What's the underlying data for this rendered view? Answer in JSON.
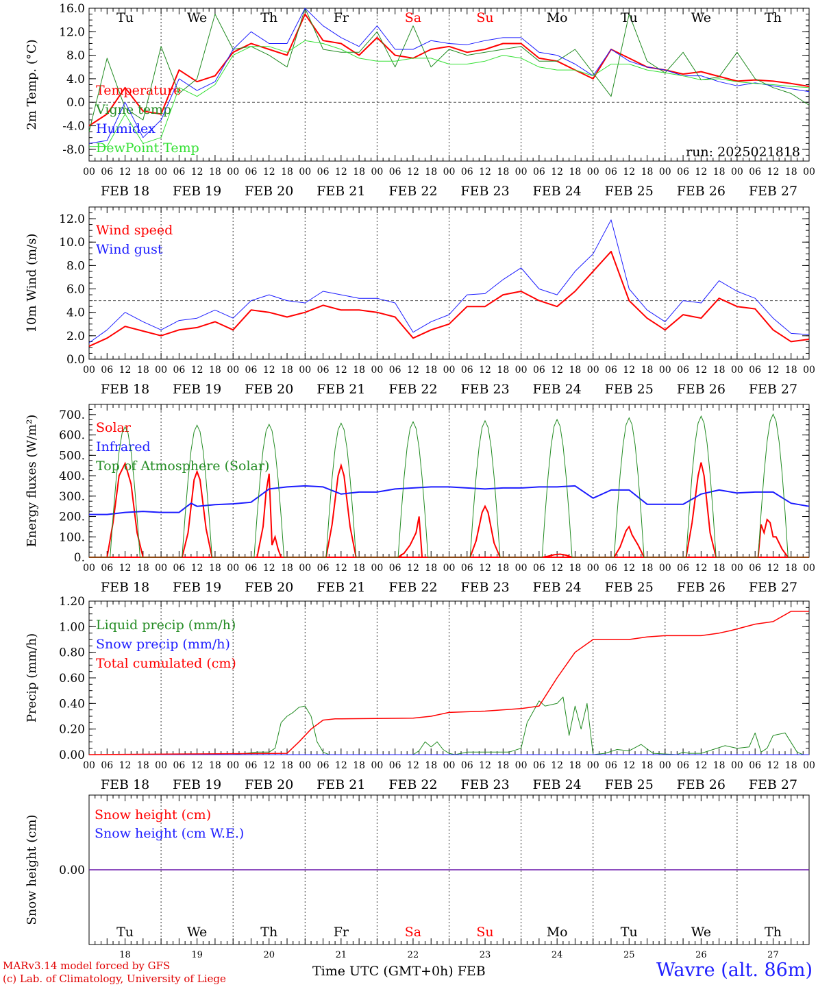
{
  "x_days": [
    "FEB 18",
    "FEB 19",
    "FEB 20",
    "FEB 21",
    "FEB 22",
    "FEB 23",
    "FEB 24",
    "FEB 25",
    "FEB 26",
    "FEB 27"
  ],
  "hour_ticks": [
    "00",
    "06",
    "12",
    "18"
  ],
  "hour_tick_end": "00",
  "weekdays": [
    {
      "label": "Tu",
      "color": "#000000"
    },
    {
      "label": "We",
      "color": "#000000"
    },
    {
      "label": "Th",
      "color": "#000000"
    },
    {
      "label": "Fr",
      "color": "#000000"
    },
    {
      "label": "Sa",
      "color": "#ff0000"
    },
    {
      "label": "Su",
      "color": "#ff0000"
    },
    {
      "label": "Mo",
      "color": "#000000"
    },
    {
      "label": "Tu",
      "color": "#000000"
    },
    {
      "label": "We",
      "color": "#000000"
    },
    {
      "label": "Th",
      "color": "#000000"
    }
  ],
  "day_numbers": [
    "18",
    "19",
    "20",
    "21",
    "22",
    "23",
    "24",
    "25",
    "26",
    "27"
  ],
  "footer": {
    "left_line1": "MARv3.14 model forced by GFS",
    "left_line2": "(c) Lab. of Climatology, University of Liege",
    "center": "Time UTC (GMT+0h) FEB",
    "right": "Wavre (alt. 86m)"
  },
  "chart_data": [
    {
      "type": "line",
      "ylabel": "2m Temp. (°C)",
      "ylim": [
        -10,
        16
      ],
      "yticks": [
        "16.0",
        "12.0",
        "8.0",
        "4.0",
        "0.0",
        "-4.0",
        "-8.0"
      ],
      "ytick_values": [
        16,
        12,
        8,
        4,
        0,
        -4,
        -8
      ],
      "ref_line": 0,
      "annotation": "run: 2025021818",
      "x_hours": [
        0,
        6,
        12,
        18,
        24,
        30,
        36,
        42,
        48,
        54,
        60,
        66,
        72,
        78,
        84,
        90,
        96,
        102,
        108,
        114,
        120,
        126,
        132,
        138,
        144,
        150,
        156,
        162,
        168,
        174,
        180,
        186,
        192,
        198,
        204,
        210,
        216,
        222,
        228,
        234,
        240
      ],
      "series": [
        {
          "name": "Temperature",
          "color": "#ff0000",
          "width": 2,
          "values": [
            -4,
            -2,
            2.5,
            -1.5,
            -2,
            5.5,
            3.5,
            4.5,
            8.5,
            10,
            9,
            8,
            15,
            10.5,
            10,
            8,
            11,
            8,
            7.5,
            9,
            9.5,
            8.5,
            9,
            10,
            10,
            7.5,
            7,
            5.5,
            4,
            9,
            7.5,
            6,
            5.5,
            4.8,
            5.2,
            4.4,
            3.6,
            3.8,
            3.6,
            3.2,
            2.7
          ]
        },
        {
          "name": "Vigne temp",
          "color": "#228b22",
          "width": 1,
          "values": [
            -5,
            7.5,
            -1,
            -3,
            9.5,
            1.5,
            4,
            15,
            9,
            9.5,
            8,
            6,
            16,
            9,
            8.5,
            8.5,
            12,
            6,
            13,
            6,
            9,
            8,
            8.5,
            9,
            9.5,
            7,
            7,
            9,
            5,
            1,
            15,
            7,
            5,
            8.5,
            3.8,
            4.3,
            8.5,
            4,
            2.5,
            1.5,
            -0.5
          ]
        },
        {
          "name": "Humidex",
          "color": "#1c1cff",
          "width": 1,
          "values": [
            -7,
            -6.5,
            0,
            -6,
            -3,
            4,
            2,
            3.5,
            9,
            12,
            10,
            10,
            16,
            13,
            11,
            9.5,
            13,
            9,
            9,
            10.5,
            10,
            9.8,
            10.5,
            11,
            11,
            8.5,
            8,
            6.5,
            4.5,
            9,
            7,
            6,
            5.5,
            4.5,
            4.5,
            3.5,
            2.8,
            3.3,
            2.8,
            2.3,
            1.8
          ]
        },
        {
          "name": "DewPoint Temp",
          "color": "#33e033",
          "width": 1,
          "values": [
            -7.5,
            -7.5,
            -2,
            -7,
            -6,
            2.5,
            1,
            3,
            8,
            9.5,
            9.5,
            8.5,
            10.5,
            10,
            9,
            7.5,
            7,
            7,
            7.5,
            7.5,
            6.5,
            6.5,
            7,
            8,
            7.5,
            6,
            5.5,
            5.5,
            4.5,
            6.5,
            6.5,
            5.5,
            5,
            4.5,
            3.8,
            4,
            3.5,
            3.2,
            3,
            2.7,
            2.5
          ]
        }
      ]
    },
    {
      "type": "line",
      "ylabel": "10m Wind (m/s)",
      "ylim": [
        0,
        13
      ],
      "yticks": [
        "12.0",
        "10.0",
        "8.0",
        "6.0",
        "4.0",
        "2.0",
        "0.0"
      ],
      "ytick_values": [
        12,
        10,
        8,
        6,
        4,
        2,
        0
      ],
      "ref_line": 5,
      "x_hours": [
        0,
        6,
        12,
        18,
        24,
        30,
        36,
        42,
        48,
        54,
        60,
        66,
        72,
        78,
        84,
        90,
        96,
        102,
        108,
        114,
        120,
        126,
        132,
        138,
        144,
        150,
        156,
        162,
        168,
        174,
        180,
        186,
        192,
        198,
        204,
        210,
        216,
        222,
        228,
        234,
        240
      ],
      "series": [
        {
          "name": "Wind speed",
          "color": "#ff0000",
          "width": 2,
          "values": [
            1.1,
            1.8,
            2.8,
            2.4,
            2,
            2.5,
            2.7,
            3.2,
            2.5,
            4.2,
            4,
            3.6,
            4,
            4.6,
            4.2,
            4.2,
            4,
            3.6,
            1.8,
            2.5,
            3,
            4.5,
            4.5,
            5.5,
            5.8,
            5,
            4.5,
            5.8,
            7.5,
            9.2,
            5,
            3.5,
            2.5,
            3.8,
            3.5,
            5.2,
            4.5,
            4.3,
            2.5,
            1.5,
            1.7
          ]
        },
        {
          "name": "Wind gust",
          "color": "#1c1cff",
          "width": 1,
          "values": [
            1.4,
            2.5,
            4,
            3.2,
            2.5,
            3.3,
            3.5,
            4.2,
            3.5,
            5,
            5.5,
            5,
            4.8,
            5.8,
            5.5,
            5.2,
            5.2,
            4.8,
            2.3,
            3.2,
            3.8,
            5.5,
            5.6,
            6.8,
            7.8,
            6,
            5.5,
            7.5,
            9,
            11.9,
            6,
            4.2,
            3.2,
            5,
            4.8,
            6.7,
            5.8,
            5.2,
            3.5,
            2.2,
            2.1
          ]
        }
      ]
    },
    {
      "type": "line",
      "ylabel": "Energy fluxes (W/m²)",
      "ylim": [
        0,
        750
      ],
      "yticks": [
        "700.",
        "600.",
        "500.",
        "400.",
        "300.",
        "200.",
        "100.",
        "0."
      ],
      "ytick_values": [
        700,
        600,
        500,
        400,
        300,
        200,
        100,
        0
      ],
      "series": [
        {
          "name": "Solar",
          "color": "#ff0000",
          "width": 2,
          "peaks": [
            {
              "day": 0,
              "x": [
                6,
                8,
                10,
                12,
                14,
                16,
                18
              ],
              "y": [
                0,
                170,
                400,
                460,
                360,
                120,
                0
              ]
            },
            {
              "day": 1,
              "x": [
                7,
                9,
                11,
                12,
                13,
                15,
                17
              ],
              "y": [
                0,
                120,
                380,
                420,
                380,
                140,
                0
              ]
            },
            {
              "day": 2,
              "x": [
                8,
                10,
                11,
                12,
                13,
                14,
                15,
                16
              ],
              "y": [
                0,
                150,
                320,
                410,
                60,
                100,
                40,
                0
              ]
            },
            {
              "day": 3,
              "x": [
                7,
                9,
                11,
                12,
                13,
                15,
                17
              ],
              "y": [
                0,
                160,
                400,
                450,
                400,
                150,
                0
              ]
            },
            {
              "day": 4,
              "x": [
                7,
                9,
                11,
                13,
                14,
                15
              ],
              "y": [
                0,
                20,
                60,
                120,
                200,
                0
              ]
            },
            {
              "day": 5,
              "x": [
                7,
                9,
                11,
                12,
                13,
                15,
                17
              ],
              "y": [
                0,
                80,
                220,
                250,
                220,
                70,
                0
              ]
            },
            {
              "day": 6,
              "x": [
                7,
                9,
                11,
                13,
                15,
                17
              ],
              "y": [
                0,
                5,
                12,
                15,
                10,
                0
              ]
            },
            {
              "day": 7,
              "x": [
                7,
                9,
                11,
                12,
                13,
                15,
                17
              ],
              "y": [
                0,
                50,
                130,
                150,
                110,
                60,
                0
              ]
            },
            {
              "day": 8,
              "x": [
                7,
                9,
                11,
                12,
                13,
                15,
                17
              ],
              "y": [
                0,
                170,
                400,
                465,
                400,
                120,
                0
              ]
            },
            {
              "day": 9,
              "x": [
                7,
                8,
                9,
                10,
                11,
                12,
                13,
                15,
                17
              ],
              "y": [
                0,
                160,
                120,
                185,
                170,
                100,
                100,
                40,
                0
              ]
            }
          ]
        },
        {
          "name": "Infrared",
          "color": "#1c1cff",
          "width": 2,
          "x_hours": [
            0,
            6,
            12,
            18,
            24,
            30,
            34,
            36,
            42,
            48,
            54,
            60,
            66,
            72,
            78,
            84,
            90,
            96,
            102,
            108,
            114,
            120,
            126,
            132,
            138,
            144,
            150,
            156,
            162,
            168,
            174,
            180,
            186,
            192,
            198,
            204,
            210,
            216,
            222,
            228,
            234,
            240
          ],
          "values": [
            210,
            210,
            220,
            225,
            220,
            220,
            265,
            250,
            258,
            262,
            270,
            335,
            345,
            350,
            345,
            310,
            320,
            320,
            335,
            340,
            345,
            345,
            340,
            335,
            340,
            340,
            345,
            345,
            350,
            290,
            330,
            330,
            260,
            260,
            260,
            310,
            330,
            315,
            320,
            320,
            265,
            250
          ]
        },
        {
          "name": "Top of Atmosphere (Solar)",
          "color": "#228b22",
          "width": 1,
          "toa_peaks": [
            640,
            648,
            652,
            658,
            665,
            670,
            676,
            684,
            692,
            702
          ]
        }
      ]
    },
    {
      "type": "line",
      "ylabel": "Precip (mm/h)",
      "ylim": [
        0,
        1.2
      ],
      "yticks": [
        "1.20",
        "1.00",
        "0.80",
        "0.60",
        "0.40",
        "0.20",
        "0.00"
      ],
      "ytick_values": [
        1.2,
        1.0,
        0.8,
        0.6,
        0.4,
        0.2,
        0
      ],
      "series": [
        {
          "name": "Liquid precip (mm/h)",
          "color": "#228b22",
          "width": 1,
          "x_hours": [
            0,
            48,
            52,
            56,
            60,
            62,
            64,
            66,
            68,
            70,
            72,
            74,
            76,
            78,
            80,
            82,
            84,
            96,
            108,
            110,
            112,
            114,
            116,
            118,
            120,
            122,
            124,
            126,
            140,
            144,
            146,
            150,
            152,
            156,
            158,
            160,
            162,
            164,
            166,
            168,
            172,
            176,
            180,
            184,
            188,
            196,
            198,
            200,
            204,
            208,
            212,
            216,
            220,
            222,
            224,
            226,
            228,
            232,
            236,
            238,
            240
          ],
          "values": [
            0,
            0,
            0.01,
            0.02,
            0.02,
            0.05,
            0.25,
            0.3,
            0.33,
            0.37,
            0.38,
            0.3,
            0.1,
            0.02,
            0,
            0,
            0,
            0,
            0,
            0.03,
            0.1,
            0.06,
            0.1,
            0.04,
            0.01,
            0,
            0.01,
            0.02,
            0.02,
            0.05,
            0.25,
            0.42,
            0.38,
            0.4,
            0.45,
            0.15,
            0.38,
            0.2,
            0.4,
            0,
            0.01,
            0.04,
            0.03,
            0.08,
            0.01,
            0,
            0.02,
            0.01,
            0.01,
            0.04,
            0.07,
            0.05,
            0.06,
            0.17,
            0.02,
            0.05,
            0.15,
            0.17,
            0.02,
            0,
            0
          ]
        },
        {
          "name": "Snow precip (mm/h)",
          "color": "#1c1cff",
          "width": 1,
          "x_hours": [
            0,
            240
          ],
          "values": [
            0,
            0
          ]
        },
        {
          "name": "Total cumulated (cm)",
          "color": "#ff0000",
          "width": 1.5,
          "x_hours": [
            0,
            66,
            70,
            74,
            78,
            82,
            84,
            108,
            114,
            120,
            132,
            144,
            150,
            156,
            162,
            168,
            174,
            180,
            186,
            192,
            198,
            204,
            210,
            214,
            222,
            228,
            234,
            240
          ],
          "values": [
            0,
            0.01,
            0.1,
            0.2,
            0.27,
            0.28,
            0.28,
            0.285,
            0.3,
            0.33,
            0.34,
            0.36,
            0.38,
            0.6,
            0.8,
            0.9,
            0.9,
            0.9,
            0.92,
            0.93,
            0.93,
            0.93,
            0.95,
            0.97,
            1.02,
            1.04,
            1.12,
            1.12
          ]
        }
      ]
    },
    {
      "type": "line",
      "ylabel": "Snow height (cm)",
      "ylim": [
        -1,
        1
      ],
      "yticks": [
        "0.00"
      ],
      "ytick_values": [
        0
      ],
      "series": [
        {
          "name": "Snow height (cm)",
          "color": "#ff0000",
          "width": 1.5,
          "x_hours": [
            0,
            240
          ],
          "values": [
            0,
            0
          ]
        },
        {
          "name": "Snow height (cm W.E.)",
          "color": "#1c1cff",
          "width": 1,
          "x_hours": [
            0,
            240
          ],
          "values": [
            0,
            0
          ]
        }
      ]
    }
  ]
}
